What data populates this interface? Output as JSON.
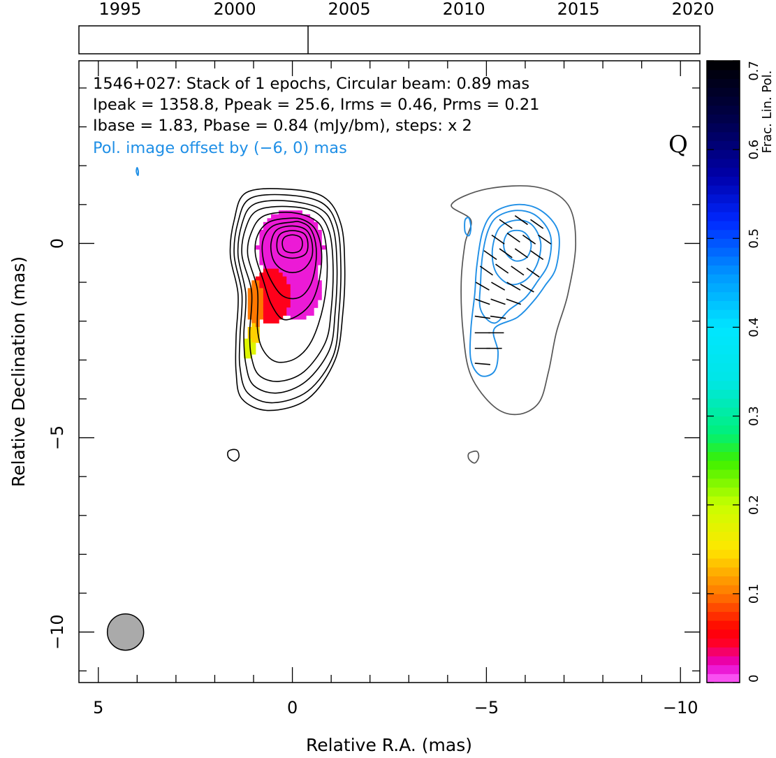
{
  "chart_data": {
    "type": "contour",
    "source": "1546+027",
    "annotation_lines": [
      "1546+027: Stack of 1 epochs, Circular beam: 0.89 mas",
      "Ipeak = 1358.8, Ppeak = 25.6, Irms = 0.46, Prms = 0.21",
      "Ibase = 1.83, Pbase = 0.84 (mJy/bm), steps: x 2"
    ],
    "offset_note": "Pol. image offset by (−6, 0) mas",
    "quality_flag": "Q",
    "xlabel": "Relative R.A. (mas)",
    "ylabel": "Relative Declination (mas)",
    "xlim": [
      5.5,
      -10.5
    ],
    "ylim": [
      -11.3,
      4.7
    ],
    "x_ticks": [
      5,
      0,
      -5,
      -10
    ],
    "x_tick_labels": [
      "5",
      "0",
      "−5",
      "−10"
    ],
    "y_ticks": [
      0,
      -5,
      -10
    ],
    "y_tick_labels": [
      "0",
      "−5",
      "−10"
    ],
    "timeline": {
      "years": [
        1995,
        2000,
        2005,
        2010,
        2015,
        2020
      ],
      "range": [
        1993.2,
        2020.3
      ],
      "epochs": [
        2003.2
      ]
    },
    "colorbar": {
      "label": "Frac. Lin. Pol.",
      "range": [
        0,
        0.7
      ],
      "ticks": [
        0,
        0.1,
        0.2,
        0.3,
        0.4,
        0.5,
        0.6,
        0.7
      ],
      "tick_labels": [
        "0",
        "0.1",
        "0.2",
        "0.3",
        "0.4",
        "0.5",
        "0.6",
        "0.7"
      ]
    },
    "beam": {
      "x": 4.3,
      "y": -10.0,
      "diameter_mas": 0.89
    },
    "total_intensity_contours": [
      {
        "level": 1,
        "points": [
          [
            0.2,
            1.4
          ],
          [
            1.2,
            1.3
          ],
          [
            1.5,
            0.6
          ],
          [
            1.6,
            -0.3
          ],
          [
            1.4,
            -1.3
          ],
          [
            1.45,
            -2.4
          ],
          [
            1.45,
            -3.3
          ],
          [
            1.3,
            -4.0
          ],
          [
            0.6,
            -4.3
          ],
          [
            -0.4,
            -4.0
          ],
          [
            -1.1,
            -3.0
          ],
          [
            -1.3,
            -1.8
          ],
          [
            -1.35,
            -0.6
          ],
          [
            -1.25,
            0.5
          ],
          [
            -0.8,
            1.2
          ]
        ]
      },
      {
        "level": 2,
        "points": [
          [
            0.2,
            1.25
          ],
          [
            1.1,
            1.15
          ],
          [
            1.4,
            0.55
          ],
          [
            1.5,
            -0.3
          ],
          [
            1.3,
            -1.3
          ],
          [
            1.35,
            -2.4
          ],
          [
            1.35,
            -3.2
          ],
          [
            1.15,
            -3.85
          ],
          [
            0.5,
            -4.1
          ],
          [
            -0.4,
            -3.8
          ],
          [
            -1.05,
            -2.9
          ],
          [
            -1.2,
            -1.8
          ],
          [
            -1.25,
            -0.6
          ],
          [
            -1.15,
            0.45
          ],
          [
            -0.75,
            1.05
          ]
        ]
      },
      {
        "level": 4,
        "points": [
          [
            0.2,
            1.1
          ],
          [
            1.0,
            1.0
          ],
          [
            1.3,
            0.5
          ],
          [
            1.4,
            -0.3
          ],
          [
            1.2,
            -1.3
          ],
          [
            1.25,
            -2.35
          ],
          [
            1.2,
            -3.1
          ],
          [
            1.0,
            -3.65
          ],
          [
            0.4,
            -3.85
          ],
          [
            -0.35,
            -3.55
          ],
          [
            -0.95,
            -2.75
          ],
          [
            -1.1,
            -1.8
          ],
          [
            -1.15,
            -0.6
          ],
          [
            -1.05,
            0.4
          ],
          [
            -0.7,
            0.9
          ]
        ]
      },
      {
        "level": 8,
        "points": [
          [
            0.15,
            0.95
          ],
          [
            0.9,
            0.85
          ],
          [
            1.2,
            0.4
          ],
          [
            1.3,
            -0.3
          ],
          [
            1.05,
            -1.25
          ],
          [
            1.1,
            -2.3
          ],
          [
            1.05,
            -2.95
          ],
          [
            0.85,
            -3.4
          ],
          [
            0.35,
            -3.55
          ],
          [
            -0.3,
            -3.3
          ],
          [
            -0.85,
            -2.55
          ],
          [
            -1.0,
            -1.7
          ],
          [
            -1.05,
            -0.6
          ],
          [
            -0.95,
            0.3
          ],
          [
            -0.6,
            0.8
          ]
        ]
      },
      {
        "level": 16,
        "points": [
          [
            0.1,
            0.8
          ],
          [
            0.75,
            0.7
          ],
          [
            1.05,
            0.3
          ],
          [
            1.15,
            -0.3
          ],
          [
            0.9,
            -1.2
          ],
          [
            0.9,
            -2.2
          ],
          [
            0.75,
            -2.75
          ],
          [
            0.4,
            -3.05
          ],
          [
            -0.1,
            -2.95
          ],
          [
            -0.5,
            -2.5
          ],
          [
            -0.8,
            -1.6
          ],
          [
            -0.9,
            -0.6
          ],
          [
            -0.8,
            0.3
          ],
          [
            -0.5,
            0.65
          ]
        ]
      },
      {
        "level": 32,
        "points": [
          [
            0.05,
            0.65
          ],
          [
            0.6,
            0.55
          ],
          [
            0.9,
            0.2
          ],
          [
            0.95,
            -0.3
          ],
          [
            0.75,
            -0.95
          ],
          [
            0.55,
            -1.55
          ],
          [
            0.25,
            -1.95
          ],
          [
            -0.15,
            -1.85
          ],
          [
            -0.5,
            -1.5
          ],
          [
            -0.7,
            -0.9
          ],
          [
            -0.75,
            -0.2
          ],
          [
            -0.6,
            0.35
          ],
          [
            -0.3,
            0.6
          ]
        ]
      },
      {
        "level": 64,
        "points": [
          [
            0.0,
            0.55
          ],
          [
            0.5,
            0.45
          ],
          [
            0.75,
            0.1
          ],
          [
            0.75,
            -0.4
          ],
          [
            0.55,
            -0.95
          ],
          [
            0.25,
            -1.35
          ],
          [
            -0.15,
            -1.4
          ],
          [
            -0.45,
            -1.1
          ],
          [
            -0.6,
            -0.55
          ],
          [
            -0.6,
            0.0
          ],
          [
            -0.45,
            0.4
          ],
          [
            -0.2,
            0.55
          ]
        ]
      },
      {
        "level": 128,
        "points": [
          [
            0.0,
            0.45
          ],
          [
            0.4,
            0.35
          ],
          [
            0.55,
            0.0
          ],
          [
            0.5,
            -0.4
          ],
          [
            0.3,
            -0.65
          ],
          [
            0.0,
            -0.75
          ],
          [
            -0.3,
            -0.65
          ],
          [
            -0.5,
            -0.35
          ],
          [
            -0.5,
            0.05
          ],
          [
            -0.35,
            0.35
          ]
        ]
      },
      {
        "level": 256,
        "points": [
          [
            0.0,
            0.33
          ],
          [
            0.3,
            0.25
          ],
          [
            0.4,
            0.0
          ],
          [
            0.33,
            -0.28
          ],
          [
            0.0,
            -0.38
          ],
          [
            -0.33,
            -0.28
          ],
          [
            -0.4,
            0.0
          ],
          [
            -0.3,
            0.25
          ]
        ]
      },
      {
        "level": 512,
        "points": [
          [
            0.0,
            0.22
          ],
          [
            0.2,
            0.16
          ],
          [
            0.26,
            0.0
          ],
          [
            0.2,
            -0.18
          ],
          [
            0.0,
            -0.24
          ],
          [
            -0.2,
            -0.18
          ],
          [
            -0.26,
            0.0
          ],
          [
            -0.2,
            0.16
          ]
        ]
      },
      {
        "level": 1,
        "points": [
          [
            1.5,
            -5.3
          ],
          [
            1.65,
            -5.35
          ],
          [
            1.65,
            -5.5
          ],
          [
            1.5,
            -5.6
          ],
          [
            1.38,
            -5.5
          ],
          [
            1.4,
            -5.35
          ]
        ]
      }
    ],
    "polarized_contours": [
      {
        "level": 1,
        "points": [
          [
            -4.1,
            1.0
          ],
          [
            -5.0,
            1.4
          ],
          [
            -6.3,
            1.45
          ],
          [
            -7.1,
            1.0
          ],
          [
            -7.3,
            0.0
          ],
          [
            -7.1,
            -1.3
          ],
          [
            -6.8,
            -2.3
          ],
          [
            -6.6,
            -3.3
          ],
          [
            -6.35,
            -4.1
          ],
          [
            -5.8,
            -4.4
          ],
          [
            -5.2,
            -4.2
          ],
          [
            -4.6,
            -3.4
          ],
          [
            -4.4,
            -2.3
          ],
          [
            -4.35,
            -1.0
          ],
          [
            -4.45,
            0.0
          ],
          [
            -4.6,
            0.6
          ]
        ]
      },
      {
        "level": 1,
        "points": [
          [
            -4.55,
            -5.4
          ],
          [
            -4.75,
            -5.35
          ],
          [
            -4.8,
            -5.5
          ],
          [
            -4.7,
            -5.65
          ],
          [
            -4.55,
            -5.55
          ]
        ]
      },
      {
        "level": 1,
        "points": [
          [
            -5.2,
            0.8
          ],
          [
            -5.8,
            1.0
          ],
          [
            -6.4,
            0.85
          ],
          [
            -6.85,
            0.3
          ],
          [
            -6.8,
            -0.6
          ],
          [
            -6.5,
            -1.1
          ],
          [
            -6.2,
            -1.5
          ],
          [
            -5.8,
            -1.9
          ],
          [
            -5.2,
            -2.2
          ],
          [
            -5.3,
            -2.8
          ],
          [
            -5.2,
            -3.3
          ],
          [
            -4.85,
            -3.4
          ],
          [
            -4.6,
            -3.0
          ],
          [
            -4.6,
            -2.2
          ],
          [
            -4.7,
            -1.3
          ],
          [
            -4.75,
            -0.6
          ],
          [
            -4.9,
            0.3
          ]
        ]
      },
      {
        "level": 2,
        "points": [
          [
            -5.3,
            0.7
          ],
          [
            -5.8,
            0.85
          ],
          [
            -6.3,
            0.7
          ],
          [
            -6.65,
            0.2
          ],
          [
            -6.6,
            -0.5
          ],
          [
            -6.3,
            -1.0
          ],
          [
            -6.0,
            -1.4
          ],
          [
            -5.6,
            -1.7
          ],
          [
            -5.2,
            -2.05
          ],
          [
            -4.85,
            -1.7
          ],
          [
            -4.85,
            -1.0
          ],
          [
            -4.9,
            -0.3
          ],
          [
            -5.05,
            0.35
          ]
        ]
      },
      {
        "level": 4,
        "points": [
          [
            -5.45,
            0.5
          ],
          [
            -5.85,
            0.6
          ],
          [
            -6.2,
            0.45
          ],
          [
            -6.4,
            0.0
          ],
          [
            -6.3,
            -0.55
          ],
          [
            -6.0,
            -0.95
          ],
          [
            -5.6,
            -1.05
          ],
          [
            -5.25,
            -0.75
          ],
          [
            -5.15,
            -0.25
          ],
          [
            -5.25,
            0.25
          ]
        ]
      },
      {
        "level": 8,
        "points": [
          [
            -5.6,
            0.3
          ],
          [
            -5.95,
            0.3
          ],
          [
            -6.15,
            0.0
          ],
          [
            -6.05,
            -0.35
          ],
          [
            -5.75,
            -0.45
          ],
          [
            -5.5,
            -0.25
          ],
          [
            -5.45,
            0.05
          ]
        ]
      },
      {
        "level": 1,
        "points": [
          [
            -4.45,
            0.6
          ],
          [
            -4.55,
            0.65
          ],
          [
            -4.6,
            0.4
          ],
          [
            -4.55,
            0.2
          ],
          [
            -4.45,
            0.3
          ]
        ]
      },
      {
        "level": 1,
        "points": [
          [
            4.0,
            1.95
          ],
          [
            3.97,
            1.85
          ],
          [
            3.98,
            1.75
          ],
          [
            4.02,
            1.85
          ]
        ]
      }
    ],
    "evpa_vectors": [
      {
        "x": -5.5,
        "y": 0.5,
        "angle": 35
      },
      {
        "x": -5.9,
        "y": 0.6,
        "angle": 35
      },
      {
        "x": -6.3,
        "y": 0.5,
        "angle": 35
      },
      {
        "x": -5.3,
        "y": 0.1,
        "angle": 35
      },
      {
        "x": -5.7,
        "y": 0.15,
        "angle": 35
      },
      {
        "x": -6.1,
        "y": 0.1,
        "angle": 35
      },
      {
        "x": -6.5,
        "y": 0.1,
        "angle": 35
      },
      {
        "x": -5.1,
        "y": -0.3,
        "angle": 35
      },
      {
        "x": -5.5,
        "y": -0.25,
        "angle": 35
      },
      {
        "x": -5.9,
        "y": -0.25,
        "angle": 35
      },
      {
        "x": -6.3,
        "y": -0.3,
        "angle": 35
      },
      {
        "x": -5.0,
        "y": -0.7,
        "angle": 35
      },
      {
        "x": -5.4,
        "y": -0.65,
        "angle": 35
      },
      {
        "x": -5.8,
        "y": -0.7,
        "angle": 35
      },
      {
        "x": -6.2,
        "y": -0.75,
        "angle": 35
      },
      {
        "x": -4.9,
        "y": -1.1,
        "angle": 30
      },
      {
        "x": -5.3,
        "y": -1.1,
        "angle": 30
      },
      {
        "x": -5.7,
        "y": -1.1,
        "angle": 30
      },
      {
        "x": -6.05,
        "y": -1.15,
        "angle": 30
      },
      {
        "x": -4.9,
        "y": -1.5,
        "angle": 20
      },
      {
        "x": -5.3,
        "y": -1.5,
        "angle": 20
      },
      {
        "x": -5.7,
        "y": -1.5,
        "angle": 20
      },
      {
        "x": -4.9,
        "y": -1.9,
        "angle": 8
      },
      {
        "x": -5.3,
        "y": -1.9,
        "angle": 8
      },
      {
        "x": -4.9,
        "y": -2.3,
        "angle": 0
      },
      {
        "x": -5.25,
        "y": -2.3,
        "angle": 0
      },
      {
        "x": -4.9,
        "y": -2.7,
        "angle": 0
      },
      {
        "x": -5.2,
        "y": -2.7,
        "angle": 0
      },
      {
        "x": -4.9,
        "y": -3.1,
        "angle": 5
      }
    ],
    "fractional_polarization_map": {
      "cell_size_mas": 0.1,
      "regions": [
        {
          "kind": "ellipse",
          "cx": 0.05,
          "cy": -0.1,
          "rx": 0.85,
          "ry": 0.95,
          "value": 0.015
        },
        {
          "kind": "ellipse",
          "cx": -0.15,
          "cy": -1.2,
          "rx": 0.6,
          "ry": 0.75,
          "value": 0.015
        },
        {
          "kind": "ellipse",
          "cx": 0.55,
          "cy": -1.35,
          "rx": 0.5,
          "ry": 0.75,
          "value": 0.05
        },
        {
          "kind": "ellipse",
          "cx": 0.95,
          "cy": -1.55,
          "rx": 0.2,
          "ry": 0.6,
          "value": 0.1
        },
        {
          "kind": "ellipse",
          "cx": 1.0,
          "cy": -2.35,
          "rx": 0.18,
          "ry": 0.3,
          "value": 0.14
        },
        {
          "kind": "ellipse",
          "cx": 1.12,
          "cy": -2.7,
          "rx": 0.13,
          "ry": 0.3,
          "value": 0.18
        }
      ]
    }
  }
}
